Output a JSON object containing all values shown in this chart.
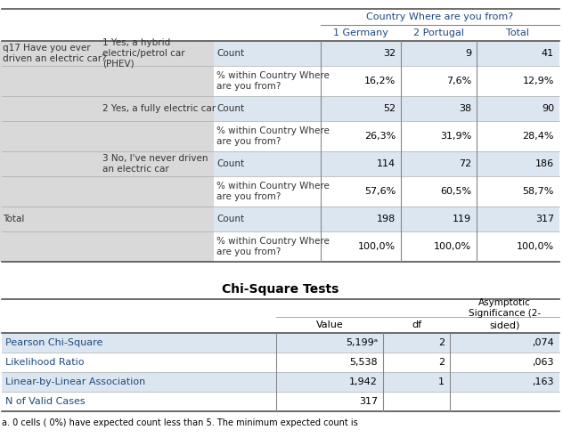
{
  "title1": "Country Where are you from?",
  "col_headers": [
    "1 Germany",
    "2 Portugal",
    "Total"
  ],
  "crosstab_rows": [
    {
      "row_label_1": "q17 Have you ever\ndriven an electric car?",
      "row_label_2": "1 Yes, a hybrid\nelectric/petrol car\n(PHEV)",
      "row_label_3": "Count",
      "vals": [
        "32",
        "9",
        "41"
      ],
      "bg": "#dce6f1"
    },
    {
      "row_label_1": "",
      "row_label_2": "",
      "row_label_3": "% within Country Where\nare you from?",
      "vals": [
        "16,2%",
        "7,6%",
        "12,9%"
      ],
      "bg": "#ffffff"
    },
    {
      "row_label_1": "",
      "row_label_2": "2 Yes, a fully electric car",
      "row_label_3": "Count",
      "vals": [
        "52",
        "38",
        "90"
      ],
      "bg": "#dce6f1"
    },
    {
      "row_label_1": "",
      "row_label_2": "",
      "row_label_3": "% within Country Where\nare you from?",
      "vals": [
        "26,3%",
        "31,9%",
        "28,4%"
      ],
      "bg": "#ffffff"
    },
    {
      "row_label_1": "",
      "row_label_2": "3 No, I've never driven\nan electric car",
      "row_label_3": "Count",
      "vals": [
        "114",
        "72",
        "186"
      ],
      "bg": "#dce6f1"
    },
    {
      "row_label_1": "",
      "row_label_2": "",
      "row_label_3": "% within Country Where\nare you from?",
      "vals": [
        "57,6%",
        "60,5%",
        "58,7%"
      ],
      "bg": "#ffffff"
    },
    {
      "row_label_1": "Total",
      "row_label_2": "",
      "row_label_3": "Count",
      "vals": [
        "198",
        "119",
        "317"
      ],
      "bg": "#dce6f1"
    },
    {
      "row_label_1": "",
      "row_label_2": "",
      "row_label_3": "% within Country Where\nare you from?",
      "vals": [
        "100,0%",
        "100,0%",
        "100,0%"
      ],
      "bg": "#ffffff"
    }
  ],
  "chi_title": "Chi-Square Tests",
  "chi_col_headers": [
    "Value",
    "df",
    "Asymptotic\nSignificance (2-\nsided)"
  ],
  "chi_rows": [
    {
      "label": "Pearson Chi-Square",
      "vals": [
        "5,199ᵃ",
        "2",
        ",074"
      ],
      "bg": "#dce6f1"
    },
    {
      "label": "Likelihood Ratio",
      "vals": [
        "5,538",
        "2",
        ",063"
      ],
      "bg": "#ffffff"
    },
    {
      "label": "Linear-by-Linear Association",
      "vals": [
        "1,942",
        "1",
        ",163"
      ],
      "bg": "#dce6f1"
    },
    {
      "label": "N of Valid Cases",
      "vals": [
        "317",
        "",
        ""
      ],
      "bg": "#ffffff"
    }
  ],
  "footnote": "a. 0 cells ( 0%) have expected count less than 5. The minimum expected count is",
  "label_bg": "#d9d9d9",
  "header_text_color": "#1f497d",
  "data_text_color": "#000000",
  "white": "#ffffff",
  "line_color": "#aaaaaa"
}
